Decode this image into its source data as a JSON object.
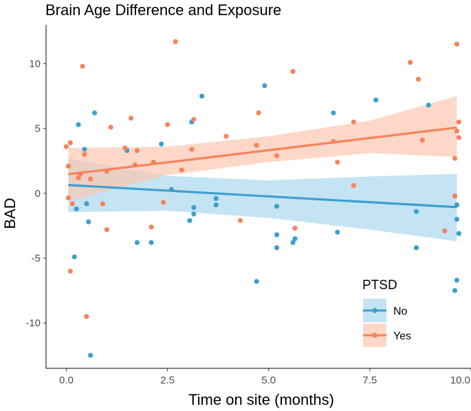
{
  "chart_data": {
    "type": "scatter",
    "title": "Brain Age Difference and Exposure",
    "xlabel": "Time on site (months)",
    "ylabel": "BAD",
    "xlim": [
      -0.5,
      10.0
    ],
    "ylim": [
      -13.5,
      13.0
    ],
    "xticks": [
      0,
      2.5,
      5,
      7.5,
      10
    ],
    "xtick_labels": [
      "0.0",
      "2.5",
      "5.0",
      "7.5",
      "10.0"
    ],
    "yticks": [
      -10,
      -5,
      0,
      5,
      10
    ],
    "ytick_labels": [
      "-10",
      "-5",
      "0",
      "5",
      "10"
    ],
    "legend": {
      "title": "PTSD",
      "position": "bottom-right"
    },
    "series": [
      {
        "name": "No",
        "color": "#3aa0cf",
        "band_color": "#a9d7ee",
        "fit": {
          "intercept": 0.65,
          "slope": -0.178
        },
        "band": {
          "x": [
            0.05,
            2.5,
            5.0,
            7.5,
            9.65
          ],
          "upper": [
            2.7,
            1.35,
            1.0,
            1.3,
            1.5
          ],
          "lower": [
            -1.45,
            -1.35,
            -1.9,
            -2.8,
            -3.7
          ]
        },
        "points": [
          [
            0.2,
            -4.9
          ],
          [
            0.25,
            -1.2
          ],
          [
            0.3,
            5.3
          ],
          [
            0.45,
            3.4
          ],
          [
            0.5,
            -0.8
          ],
          [
            0.55,
            -2.2
          ],
          [
            0.6,
            -12.5
          ],
          [
            0.7,
            6.2
          ],
          [
            1.5,
            3.3
          ],
          [
            1.75,
            -3.8
          ],
          [
            2.1,
            -3.8
          ],
          [
            2.35,
            3.8
          ],
          [
            2.6,
            0.3
          ],
          [
            3.05,
            -2.1
          ],
          [
            3.1,
            5.5
          ],
          [
            3.15,
            -1.6
          ],
          [
            3.15,
            -1.1
          ],
          [
            3.35,
            7.5
          ],
          [
            3.7,
            -0.4
          ],
          [
            3.7,
            -0.9
          ],
          [
            4.7,
            -6.8
          ],
          [
            4.9,
            8.3
          ],
          [
            5.2,
            -3.2
          ],
          [
            5.2,
            -4.2
          ],
          [
            5.2,
            -1.0
          ],
          [
            5.6,
            -3.8
          ],
          [
            5.65,
            -3.5
          ],
          [
            6.6,
            6.2
          ],
          [
            6.7,
            -3.0
          ],
          [
            7.65,
            7.2
          ],
          [
            8.65,
            -1.4
          ],
          [
            8.65,
            -4.2
          ],
          [
            9.6,
            -7.5
          ],
          [
            9.65,
            -6.7
          ],
          [
            9.65,
            -2.0
          ],
          [
            9.7,
            -3.1
          ],
          [
            9.65,
            -0.9
          ],
          [
            9.6,
            -0.2
          ],
          [
            8.95,
            6.8
          ]
        ]
      },
      {
        "name": "Yes",
        "color": "#f8825a",
        "band_color": "#fcc5b0",
        "fit": {
          "intercept": 1.45,
          "slope": 0.375
        },
        "band": {
          "x": [
            0.05,
            2.5,
            5.0,
            7.5,
            9.65
          ],
          "upper": [
            3.5,
            3.6,
            4.4,
            5.6,
            7.5
          ],
          "lower": [
            -0.6,
            1.4,
            2.4,
            3.1,
            2.8
          ]
        },
        "points": [
          [
            0.0,
            3.6
          ],
          [
            0.05,
            -0.35
          ],
          [
            0.05,
            2.1
          ],
          [
            0.1,
            3.9
          ],
          [
            0.1,
            -6.0
          ],
          [
            0.15,
            -0.8
          ],
          [
            0.3,
            1.2
          ],
          [
            0.35,
            1.5
          ],
          [
            0.4,
            9.8
          ],
          [
            0.45,
            3.0
          ],
          [
            0.5,
            -9.5
          ],
          [
            0.6,
            1.1
          ],
          [
            0.9,
            -0.8
          ],
          [
            1.0,
            -2.8
          ],
          [
            1.0,
            1.7
          ],
          [
            1.1,
            5.1
          ],
          [
            1.45,
            3.5
          ],
          [
            1.6,
            5.8
          ],
          [
            1.7,
            2.2
          ],
          [
            1.75,
            3.3
          ],
          [
            2.1,
            -2.6
          ],
          [
            2.15,
            2.4
          ],
          [
            2.4,
            -0.7
          ],
          [
            2.5,
            5.3
          ],
          [
            2.7,
            11.7
          ],
          [
            2.85,
            1.8
          ],
          [
            3.1,
            3.4
          ],
          [
            3.15,
            5.7
          ],
          [
            3.95,
            4.4
          ],
          [
            4.3,
            -2.1
          ],
          [
            4.7,
            3.7
          ],
          [
            4.75,
            6.2
          ],
          [
            5.2,
            2.9
          ],
          [
            5.6,
            9.4
          ],
          [
            5.65,
            -2.7
          ],
          [
            6.6,
            4.0
          ],
          [
            6.7,
            2.4
          ],
          [
            7.1,
            5.5
          ],
          [
            7.1,
            0.6
          ],
          [
            8.5,
            10.1
          ],
          [
            8.7,
            8.8
          ],
          [
            8.8,
            4.1
          ],
          [
            9.35,
            -2.9
          ],
          [
            9.6,
            -0.2
          ],
          [
            9.6,
            2.7
          ],
          [
            9.65,
            4.8
          ],
          [
            9.65,
            11.5
          ],
          [
            9.7,
            4.3
          ],
          [
            9.7,
            5.5
          ]
        ]
      }
    ]
  }
}
